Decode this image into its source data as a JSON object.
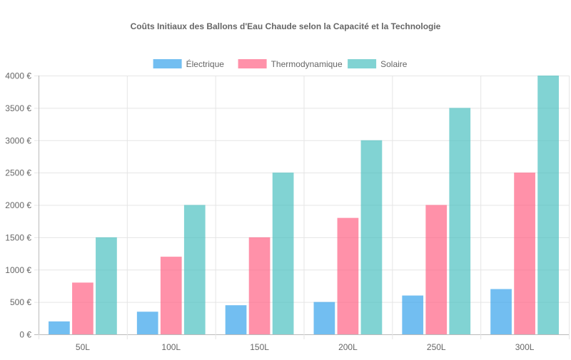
{
  "chart_data": {
    "type": "bar",
    "title": "Coûts Initiaux des Ballons d'Eau Chaude selon la Capacité et la Technologie",
    "categories": [
      "50L",
      "100L",
      "150L",
      "200L",
      "250L",
      "300L"
    ],
    "series": [
      {
        "name": "Électrique",
        "color": "#36a2eb",
        "values": [
          200,
          350,
          450,
          500,
          600,
          700
        ]
      },
      {
        "name": "Thermodynamique",
        "color": "#ff6384",
        "values": [
          800,
          1200,
          1500,
          1800,
          2000,
          2500
        ]
      },
      {
        "name": "Solaire",
        "color": "#4bc0c0",
        "values": [
          1500,
          2000,
          2500,
          3000,
          3500,
          4000
        ]
      }
    ],
    "ylim": [
      0,
      4000
    ],
    "yticks": [
      "0 €",
      "500 €",
      "1000 €",
      "1500 €",
      "2000 €",
      "2500 €",
      "3000 €",
      "3500 €",
      "4000 €"
    ],
    "grid": true,
    "legend": "top"
  }
}
